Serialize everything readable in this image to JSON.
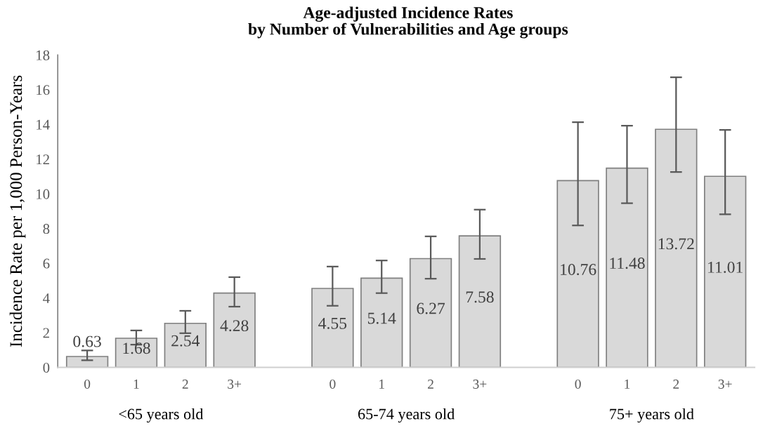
{
  "chart_data": {
    "type": "bar",
    "title": "Age-adjusted Incidence Rates\nby Number of Vulnerabilities and Age groups",
    "ylabel": "Incidence Rate per 1,000 Person-Years",
    "categories": [
      "0",
      "1",
      "2",
      "3+",
      null,
      "0",
      "1",
      "2",
      "3+",
      null,
      "0",
      "1",
      "2",
      "3+"
    ],
    "values": [
      0.63,
      1.68,
      2.54,
      4.28,
      null,
      4.55,
      5.14,
      6.27,
      7.58,
      null,
      10.76,
      11.48,
      13.72,
      11.01
    ],
    "errors": [
      [
        0.41,
        0.98
      ],
      [
        1.31,
        2.13
      ],
      [
        1.97,
        3.26
      ],
      [
        3.5,
        5.2
      ],
      null,
      [
        3.55,
        5.81
      ],
      [
        4.28,
        6.16
      ],
      [
        5.11,
        7.55
      ],
      [
        6.25,
        9.09
      ],
      null,
      [
        8.18,
        14.13
      ],
      [
        9.46,
        13.93
      ],
      [
        11.26,
        16.72
      ],
      [
        8.82,
        13.68
      ]
    ],
    "color": "#d9d9d9",
    "data_labels": true,
    "annotations": [
      "<65 years old",
      "65-74 years old",
      "75+ years old"
    ],
    "ylim": [
      0,
      18
    ],
    "yticks": [
      0,
      2,
      4,
      6,
      8,
      10,
      12,
      14,
      16,
      18
    ],
    "grid": false,
    "legend": false
  }
}
